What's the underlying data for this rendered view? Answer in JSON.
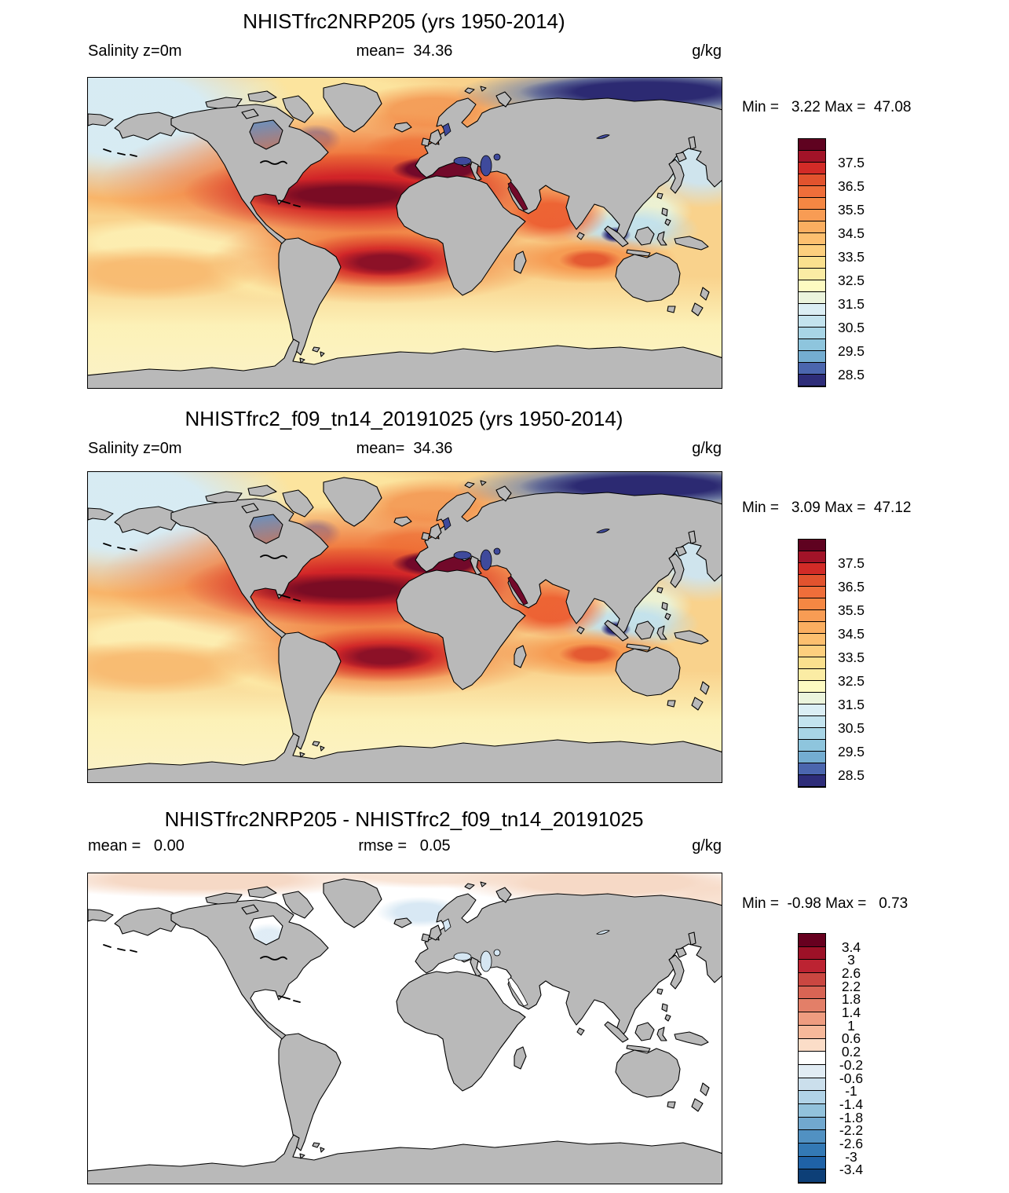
{
  "panels": [
    {
      "title": "NHISTfrc2NRP205 (yrs 1950-2014)",
      "left_label": "Salinity z=0m",
      "center_label": "mean=  34.36",
      "units": "g/kg",
      "minmax": "Min =   3.22 Max =  47.08",
      "colorbar": {
        "colors": [
          "#5f0220",
          "#a21328",
          "#d22b27",
          "#e2532e",
          "#ef6e3a",
          "#f58743",
          "#f89c54",
          "#fbae60",
          "#fdbf6f",
          "#fdcf7e",
          "#fae08e",
          "#fbeca4",
          "#fdfac1",
          "#ebf4dc",
          "#dbeef4",
          "#c3e3ee",
          "#a8d5e6",
          "#8ec5dd",
          "#74add1",
          "#4b66ae",
          "#2e2d79"
        ],
        "labels": [
          "37.5",
          "36.5",
          "35.5",
          "34.5",
          "33.5",
          "32.5",
          "31.5",
          "30.5",
          "29.5",
          "28.5"
        ],
        "label_start": 2,
        "label_step": 2
      }
    },
    {
      "title": "NHISTfrc2_f09_tn14_20191025 (yrs 1950-2014)",
      "left_label": "Salinity z=0m",
      "center_label": "mean=  34.36",
      "units": "g/kg",
      "minmax": "Min =   3.09 Max =  47.12",
      "colorbar": {
        "colors": [
          "#5f0220",
          "#a21328",
          "#d22b27",
          "#e2532e",
          "#ef6e3a",
          "#f58743",
          "#f89c54",
          "#fbae60",
          "#fdbf6f",
          "#fdcf7e",
          "#fae08e",
          "#fbeca4",
          "#fdfac1",
          "#ebf4dc",
          "#dbeef4",
          "#c3e3ee",
          "#a8d5e6",
          "#8ec5dd",
          "#74add1",
          "#4b66ae",
          "#2e2d79"
        ],
        "labels": [
          "37.5",
          "36.5",
          "35.5",
          "34.5",
          "33.5",
          "32.5",
          "31.5",
          "30.5",
          "29.5",
          "28.5"
        ],
        "label_start": 2,
        "label_step": 2
      }
    },
    {
      "title": "NHISTfrc2NRP205 - NHISTfrc2_f09_tn14_20191025",
      "left_label": "mean =   0.00",
      "center_label": "rmse =   0.05",
      "units": "g/kg",
      "minmax": "Min =  -0.98 Max =   0.73",
      "colorbar": {
        "colors": [
          "#67001f",
          "#9d1127",
          "#bc2332",
          "#ca4741",
          "#d86454",
          "#e37f68",
          "#ee9c80",
          "#f6b89a",
          "#fbddc8",
          "#ffffff",
          "#e1ecf4",
          "#cbdfec",
          "#b1d3e7",
          "#92c2dc",
          "#71a8cf",
          "#5191c2",
          "#3379b5",
          "#1f62a7",
          "#0d3f77"
        ],
        "labels": [
          "3.4",
          "3",
          "2.6",
          "2.2",
          "1.8",
          "1.4",
          "1",
          "0.6",
          "0.2",
          "-0.2",
          "-0.6",
          "-1",
          "-1.4",
          "-1.8",
          "-2.2",
          "-2.6",
          "-3",
          "-3.4"
        ],
        "label_start": 1,
        "label_step": 1
      }
    }
  ],
  "chart_data": [
    {
      "type": "heatmap",
      "subtype": "global-map-contour",
      "title": "NHISTfrc2NRP205 (yrs 1950-2014)",
      "variable": "Salinity",
      "depth": "z=0m",
      "units": "g/kg",
      "mean": 34.36,
      "min": 3.22,
      "max": 47.08,
      "levels": [
        28.5,
        29.5,
        30.5,
        31.5,
        32.5,
        33.5,
        34.5,
        35.5,
        36.5,
        37.5
      ],
      "legend_position": "right",
      "notes": "Discrete red-yellow-blue palette; high salinity (dark red) in subtropical Atlantic and Mediterranean, low salinity (dark blue) in Arctic"
    },
    {
      "type": "heatmap",
      "subtype": "global-map-contour",
      "title": "NHISTfrc2_f09_tn14_20191025 (yrs 1950-2014)",
      "variable": "Salinity",
      "depth": "z=0m",
      "units": "g/kg",
      "mean": 34.36,
      "min": 3.09,
      "max": 47.12,
      "levels": [
        28.5,
        29.5,
        30.5,
        31.5,
        32.5,
        33.5,
        34.5,
        35.5,
        36.5,
        37.5
      ],
      "legend_position": "right",
      "notes": "Same field and palette as panel 1, second model case"
    },
    {
      "type": "heatmap",
      "subtype": "global-map-difference",
      "title": "NHISTfrc2NRP205 - NHISTfrc2_f09_tn14_20191025",
      "variable": "Salinity difference",
      "units": "g/kg",
      "mean": 0.0,
      "rmse": 0.05,
      "min": -0.98,
      "max": 0.73,
      "levels": [
        -3.4,
        -3,
        -2.6,
        -2.2,
        -1.8,
        -1.4,
        -1,
        -0.6,
        -0.2,
        0.2,
        0.6,
        1,
        1.4,
        1.8,
        2.2,
        2.6,
        3,
        3.4
      ],
      "legend_position": "right",
      "notes": "Mostly white (near-zero difference); faint positive (pink) band along Arctic, faint negative (blue) patch near Greenland"
    }
  ]
}
